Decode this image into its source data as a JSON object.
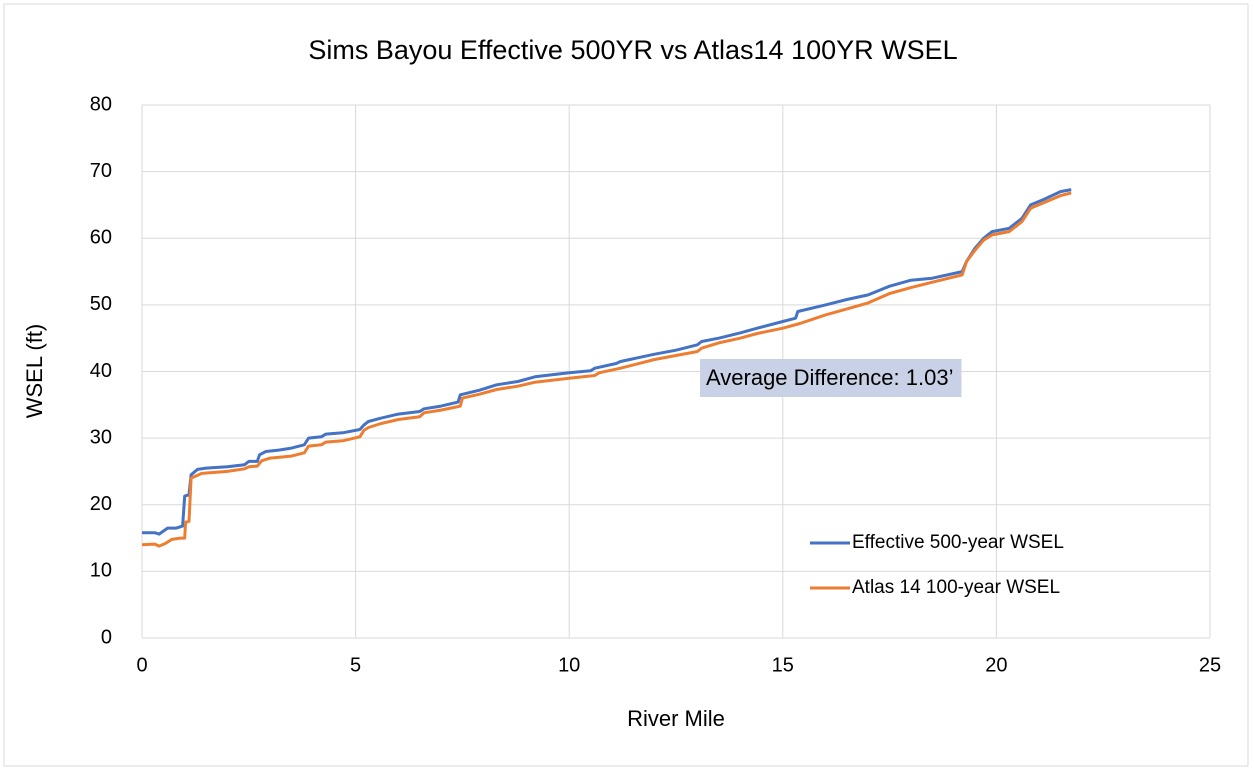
{
  "chart_data": {
    "type": "line",
    "title": "Sims Bayou Effective 500YR vs Atlas14 100YR WSEL",
    "xlabel": "River Mile",
    "ylabel": "WSEL (ft)",
    "annotation": "Average Difference: 1.03’",
    "xlim": [
      0,
      25
    ],
    "xticks": [
      0,
      5,
      10,
      15,
      20,
      25
    ],
    "ylim": [
      0,
      80
    ],
    "yticks": [
      0,
      10,
      20,
      30,
      40,
      50,
      60,
      70,
      80
    ],
    "grid": true,
    "legend": "lower right",
    "series": [
      {
        "name": "Effective 500-year WSEL",
        "color": "#4472c4",
        "x": [
          0,
          0.3,
          0.4,
          0.6,
          0.8,
          0.95,
          1.0,
          1.1,
          1.15,
          1.3,
          1.5,
          2.0,
          2.4,
          2.5,
          2.7,
          2.75,
          2.9,
          3.2,
          3.5,
          3.8,
          3.9,
          4.2,
          4.3,
          4.7,
          5.1,
          5.2,
          5.3,
          5.6,
          6.0,
          6.5,
          6.6,
          7.0,
          7.4,
          7.45,
          7.9,
          8.3,
          8.8,
          9.2,
          10,
          10.5,
          10.6,
          11.1,
          11.2,
          12,
          12.5,
          13,
          13.1,
          13.5,
          14,
          14.4,
          15,
          15.3,
          15.35,
          16,
          16.5,
          17,
          17.5,
          18,
          18.5,
          19.2,
          19.3,
          19.5,
          19.7,
          19.9,
          20.3,
          20.6,
          20.8,
          21.1,
          21.5,
          21.75
        ],
        "values": [
          15.8,
          15.8,
          15.6,
          16.5,
          16.5,
          16.8,
          21.3,
          21.5,
          24.5,
          25.3,
          25.5,
          25.7,
          26.0,
          26.5,
          26.5,
          27.5,
          28.0,
          28.2,
          28.5,
          29.0,
          30.0,
          30.2,
          30.6,
          30.8,
          31.3,
          32.0,
          32.5,
          33.0,
          33.6,
          34.0,
          34.4,
          34.8,
          35.4,
          36.5,
          37.2,
          38.0,
          38.5,
          39.2,
          39.8,
          40.1,
          40.5,
          41.2,
          41.5,
          42.6,
          43.2,
          44.0,
          44.5,
          45.0,
          45.8,
          46.5,
          47.5,
          48.0,
          49.0,
          50.0,
          50.8,
          51.5,
          52.8,
          53.7,
          54.0,
          55.0,
          56.5,
          58.5,
          60.0,
          61.0,
          61.5,
          63.0,
          65.0,
          65.8,
          67.0,
          67.3
        ]
      },
      {
        "name": "Atlas 14 100-year WSEL",
        "color": "#ed7d31",
        "x": [
          0,
          0.3,
          0.4,
          0.55,
          0.7,
          0.9,
          1.0,
          1.02,
          1.1,
          1.15,
          1.4,
          2.0,
          2.4,
          2.5,
          2.7,
          2.8,
          3.0,
          3.5,
          3.8,
          3.9,
          4.2,
          4.3,
          4.7,
          5.1,
          5.2,
          5.3,
          5.6,
          6.0,
          6.5,
          6.6,
          7.0,
          7.45,
          7.5,
          7.9,
          8.3,
          8.8,
          9.2,
          10,
          10.6,
          10.7,
          11.2,
          12,
          12.5,
          13,
          13.1,
          13.5,
          14,
          14.4,
          15,
          15.4,
          16,
          16.5,
          17,
          17.5,
          18,
          18.5,
          19.2,
          19.3,
          19.5,
          19.7,
          19.9,
          20.3,
          20.6,
          20.8,
          21.1,
          21.5,
          21.75
        ],
        "values": [
          14.0,
          14.1,
          13.8,
          14.2,
          14.8,
          15.0,
          15.0,
          17.4,
          17.5,
          24.0,
          24.7,
          25.0,
          25.4,
          25.7,
          25.8,
          26.6,
          27.0,
          27.3,
          27.8,
          28.8,
          29.0,
          29.4,
          29.6,
          30.2,
          31.2,
          31.6,
          32.2,
          32.8,
          33.2,
          33.8,
          34.2,
          34.8,
          36.0,
          36.6,
          37.3,
          37.8,
          38.4,
          39.0,
          39.4,
          39.8,
          40.5,
          41.8,
          42.4,
          43.0,
          43.5,
          44.3,
          45.0,
          45.7,
          46.5,
          47.2,
          48.5,
          49.4,
          50.3,
          51.7,
          52.6,
          53.4,
          54.5,
          56.5,
          58.2,
          59.7,
          60.5,
          61.0,
          62.5,
          64.5,
          65.3,
          66.4,
          66.8
        ]
      }
    ]
  }
}
